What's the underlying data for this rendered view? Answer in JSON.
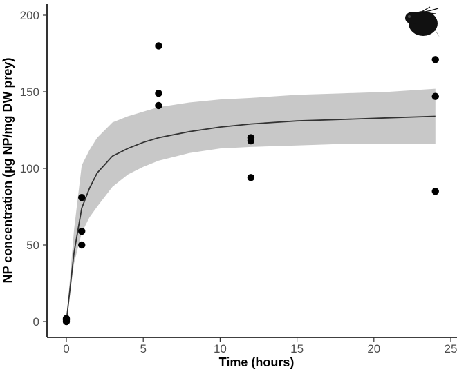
{
  "chart_data": {
    "type": "scatter",
    "xlabel": "Time (hours)",
    "ylabel": "NP concentration (µg NP/mg DW prey)",
    "xlim": [
      -2.5,
      25.5
    ],
    "ylim": [
      -10,
      205
    ],
    "x_ticks": [
      0,
      5,
      10,
      15,
      20,
      25
    ],
    "y_ticks": [
      0,
      50,
      100,
      150,
      200
    ],
    "grid": false,
    "legend": "none",
    "colors": {
      "points": "#000000",
      "fit_line": "#333333",
      "ribbon": "#c8c8c8"
    },
    "points": [
      {
        "x": 0,
        "y": 0
      },
      {
        "x": 0,
        "y": 1
      },
      {
        "x": 0,
        "y": 2
      },
      {
        "x": 1,
        "y": 50
      },
      {
        "x": 1,
        "y": 59
      },
      {
        "x": 1,
        "y": 81
      },
      {
        "x": 6,
        "y": 141
      },
      {
        "x": 6,
        "y": 149
      },
      {
        "x": 6,
        "y": 180
      },
      {
        "x": 12,
        "y": 94
      },
      {
        "x": 12,
        "y": 118
      },
      {
        "x": 12,
        "y": 120
      },
      {
        "x": 24,
        "y": 85
      },
      {
        "x": 24,
        "y": 147
      },
      {
        "x": 24,
        "y": 171
      }
    ],
    "fit": {
      "x": [
        0,
        0.5,
        1,
        1.5,
        2,
        3,
        4,
        5,
        6,
        8,
        10,
        12,
        15,
        18,
        21,
        24
      ],
      "y": [
        0,
        45,
        74,
        87,
        97,
        108,
        113,
        117,
        120,
        124,
        127,
        129,
        131,
        132,
        133,
        134
      ],
      "lower": [
        0,
        38,
        58,
        68,
        75,
        88,
        96,
        101,
        105,
        110,
        113,
        114,
        115,
        116,
        116,
        116
      ],
      "upper": [
        0,
        60,
        102,
        112,
        120,
        130,
        134,
        137,
        140,
        143,
        145,
        146,
        148,
        149,
        150,
        152
      ]
    },
    "inset_icon": "daphnia-icon"
  }
}
